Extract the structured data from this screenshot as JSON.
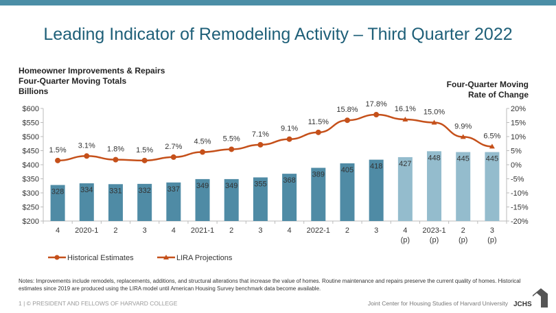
{
  "header": {
    "title": "Leading Indicator of Remodeling Activity – Third Quarter 2022"
  },
  "chart_data": {
    "type": "bar+line",
    "title_left": [
      "Homeowner Improvements & Repairs",
      "Four-Quarter Moving Totals",
      "Billions"
    ],
    "title_right": [
      "Four-Quarter Moving",
      "Rate of Change"
    ],
    "categories": [
      [
        "4",
        ""
      ],
      [
        "2020-1",
        ""
      ],
      [
        "2",
        ""
      ],
      [
        "3",
        ""
      ],
      [
        "4",
        ""
      ],
      [
        "2021-1",
        ""
      ],
      [
        "2",
        ""
      ],
      [
        "3",
        ""
      ],
      [
        "4",
        ""
      ],
      [
        "2022-1",
        ""
      ],
      [
        "2",
        ""
      ],
      [
        "3",
        ""
      ],
      [
        "4",
        "(p)"
      ],
      [
        "2023-1",
        "(p)"
      ],
      [
        "2",
        "(p)"
      ],
      [
        "3",
        "(p)"
      ]
    ],
    "bar_values": [
      328,
      334,
      331,
      332,
      337,
      349,
      349,
      355,
      368,
      389,
      405,
      418,
      427,
      448,
      445,
      445
    ],
    "rate_values": [
      1.5,
      3.1,
      1.8,
      1.5,
      2.7,
      4.5,
      5.5,
      7.1,
      9.1,
      11.5,
      15.8,
      17.8,
      16.1,
      15.0,
      9.9,
      6.5
    ],
    "rate_labels": [
      "1.5%",
      "3.1%",
      "1.8%",
      "1.5%",
      "2.7%",
      "4.5%",
      "5.5%",
      "7.1%",
      "9.1%",
      "11.5%",
      "15.8%",
      "17.8%",
      "16.1%",
      "15.0%",
      "9.9%",
      "6.5%"
    ],
    "projected_from_index": 12,
    "y_left": {
      "range": [
        200,
        600
      ],
      "ticks": [
        "$200",
        "$250",
        "$300",
        "$350",
        "$400",
        "$450",
        "$500",
        "$550",
        "$600"
      ]
    },
    "y_right": {
      "range": [
        -20,
        20
      ],
      "ticks": [
        "-20%",
        "-15%",
        "-10%",
        "-5%",
        "0%",
        "5%",
        "10%",
        "15%",
        "20%"
      ]
    },
    "legend": {
      "position": "bottom-left",
      "items": [
        "Historical Estimates",
        "LIRA Projections"
      ]
    },
    "colors": {
      "bar_historical": "#4f8ba5",
      "bar_projected": "#94bccd",
      "line": "#c5501a",
      "title": "#1e5f78"
    }
  },
  "footer": {
    "notes": "Notes: Improvements include remodels, replacements, additions, and structural alterations that increase the value of homes. Routine maintenance and repairs preserve the current quality of homes. Historical estimates since 2019 are produced using the LIRA model until American Housing Survey benchmark data become available.",
    "copyright": "1 | © PRESIDENT AND FELLOWS OF HARVARD COLLEGE",
    "org": "Joint Center for Housing Studies of Harvard University",
    "logo_text": "JCHS"
  }
}
